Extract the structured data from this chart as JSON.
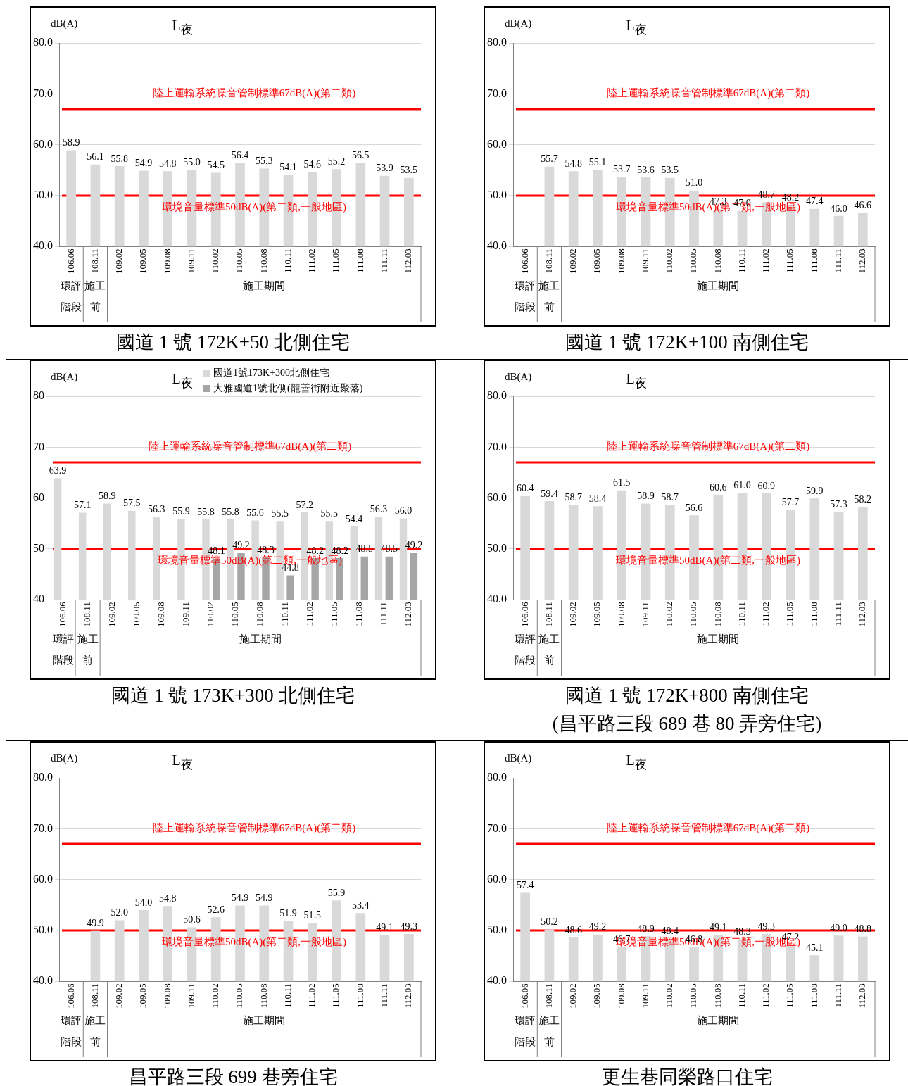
{
  "chart_data": [
    {
      "type": "bar",
      "title": "L$_{夜}$",
      "ylabel": "dB(A)",
      "subtitle": "國道 1 號 172K+50 北側住宅",
      "categories": [
        "106.06",
        "108.11",
        "109.02",
        "109.05",
        "109.08",
        "109.11",
        "110.02",
        "110.05",
        "110.08",
        "110.11",
        "111.02",
        "111.05",
        "111.08",
        "111.11",
        "112.03"
      ],
      "series": [
        {
          "color": "#d9d9d9",
          "values": [
            58.9,
            56.1,
            55.8,
            54.9,
            54.8,
            55.0,
            54.5,
            56.4,
            55.3,
            54.1,
            54.6,
            55.2,
            56.5,
            53.9,
            53.5
          ],
          "value_labels": [
            "58.9",
            "56.1",
            "55.8",
            "54.9",
            "54.8",
            "55.0",
            "54.5",
            "56.4",
            "55.3",
            "54.1",
            "54.6",
            "55.2",
            "56.5",
            "53.9",
            "53.5"
          ]
        }
      ],
      "ylim": [
        40,
        80
      ],
      "yticks": [
        {
          "value": 40,
          "label": "40.0"
        },
        {
          "value": 50,
          "label": "50.0"
        },
        {
          "value": 60,
          "label": "60.0"
        },
        {
          "value": 70,
          "label": "70.0"
        },
        {
          "value": 80,
          "label": "80.0"
        }
      ],
      "grid": "y",
      "ref_lines": [
        {
          "axis": "y",
          "value": 67,
          "label": "陸上運輸系統噪音管制標準67dB(A)(第二類)",
          "color": "#ff0000"
        },
        {
          "axis": "y",
          "value": 50,
          "label": "環境音量標準50dB(A)(第二類,一般地區)",
          "color": "#ff0000"
        }
      ],
      "annotations": [
        "環評階段",
        "施工前",
        "施工期間"
      ]
    },
    {
      "type": "bar",
      "title": "L$_{夜}$",
      "ylabel": "dB(A)",
      "subtitle": "國道 1 號 172K+100 南側住宅",
      "categories": [
        "106.06",
        "108.11",
        "109.02",
        "109.05",
        "109.08",
        "109.11",
        "110.02",
        "110.05",
        "110.08",
        "110.11",
        "111.02",
        "111.05",
        "111.08",
        "111.11",
        "112.03"
      ],
      "series": [
        {
          "color": "#d9d9d9",
          "values": [
            null,
            55.7,
            54.8,
            55.1,
            53.7,
            53.6,
            53.5,
            51.0,
            47.3,
            47.0,
            48.7,
            48.2,
            47.4,
            46.0,
            46.6
          ],
          "value_labels": [
            null,
            "55.7",
            "54.8",
            "55.1",
            "53.7",
            "53.6",
            "53.5",
            "51.0",
            "47.3",
            "47.0",
            "48.7",
            "48.2",
            "47.4",
            "46.0",
            "46.6"
          ]
        }
      ],
      "ylim": [
        40,
        80
      ],
      "yticks": [
        {
          "value": 40,
          "label": "40.0"
        },
        {
          "value": 50,
          "label": "50.0"
        },
        {
          "value": 60,
          "label": "60.0"
        },
        {
          "value": 70,
          "label": "70.0"
        },
        {
          "value": 80,
          "label": "80.0"
        }
      ],
      "grid": "y",
      "ref_lines": [
        {
          "axis": "y",
          "value": 67,
          "label": "陸上運輸系統噪音管制標準67dB(A)(第二類)",
          "color": "#ff0000"
        },
        {
          "axis": "y",
          "value": 50,
          "label": "環境音量標準50dB(A)(第二類,一般地區)",
          "color": "#ff0000"
        }
      ],
      "annotations": [
        "環評階段",
        "施工前",
        "施工期間"
      ]
    },
    {
      "type": "bar",
      "title": "L$_{夜}$",
      "ylabel": "dB(A)",
      "subtitle": "國道 1 號 173K+300 北側住宅",
      "categories": [
        "106.06",
        "108.11",
        "109.02",
        "109.05",
        "109.08",
        "109.11",
        "110.02",
        "110.05",
        "110.08",
        "110.11",
        "111.02",
        "111.05",
        "111.08",
        "111.11",
        "112.03"
      ],
      "series": [
        {
          "name": "國道1號173K+300北側住宅",
          "color": "#d9d9d9",
          "values": [
            63.9,
            57.1,
            58.9,
            57.5,
            56.3,
            55.9,
            55.8,
            55.8,
            55.6,
            55.5,
            57.2,
            55.5,
            54.4,
            56.3,
            56.0
          ],
          "value_labels": [
            "63.9",
            "57.1",
            "58.9",
            "57.5",
            "56.3",
            "55.9",
            "55.8",
            "55.8",
            "55.6",
            "55.5",
            "57.2",
            "55.5",
            "54.4",
            "56.3",
            "56.0"
          ]
        },
        {
          "name": "大雅國道1號北側(龍善街附近聚落)",
          "color": "#a6a6a6",
          "values": [
            null,
            null,
            null,
            null,
            null,
            null,
            48.1,
            49.2,
            48.3,
            44.8,
            48.2,
            48.2,
            48.5,
            48.5,
            49.2
          ],
          "value_labels": [
            null,
            null,
            null,
            null,
            null,
            null,
            "48.1",
            "49.2",
            "48.3",
            "44.8",
            "48.2",
            "48.2",
            "48.5",
            "48.5",
            "49.2"
          ]
        }
      ],
      "ylim": [
        40,
        80
      ],
      "yticks": [
        40,
        50,
        60,
        70,
        80
      ],
      "grid": "y",
      "legend": "top right",
      "ref_lines": [
        {
          "axis": "y",
          "value": 67,
          "label": "陸上運輸系統噪音管制標準67dB(A)(第二類)",
          "color": "#ff0000"
        },
        {
          "axis": "y",
          "value": 50,
          "label": "環境音量標準50dB(A)(第二類,一般地區)",
          "color": "#ff0000"
        }
      ],
      "annotations": [
        "環評階段",
        "施工前",
        "施工期間"
      ]
    },
    {
      "type": "bar",
      "title": "L$_{夜}$",
      "ylabel": "dB(A)",
      "subtitle": "國道 1 號 172K+800 南側住宅\n(昌平路三段 689 巷 80 弄旁住宅)",
      "categories": [
        "106.06",
        "108.11",
        "109.02",
        "109.05",
        "109.08",
        "109.11",
        "110.02",
        "110.05",
        "110.08",
        "110.11",
        "111.02",
        "111.05",
        "111.08",
        "111.11",
        "112.03"
      ],
      "series": [
        {
          "color": "#d9d9d9",
          "values": [
            60.4,
            59.4,
            58.7,
            58.4,
            61.5,
            58.9,
            58.7,
            56.6,
            60.6,
            61.0,
            60.9,
            57.7,
            59.9,
            57.3,
            58.2
          ],
          "value_labels": [
            "60.4",
            "59.4",
            "58.7",
            "58.4",
            "61.5",
            "58.9",
            "58.7",
            "56.6",
            "60.6",
            "61.0",
            "60.9",
            "57.7",
            "59.9",
            "57.3",
            "58.2"
          ]
        }
      ],
      "ylim": [
        40,
        80
      ],
      "yticks": [
        {
          "value": 40,
          "label": "40.0"
        },
        {
          "value": 50,
          "label": "50.0"
        },
        {
          "value": 60,
          "label": "60.0"
        },
        {
          "value": 70,
          "label": "70.0"
        },
        {
          "value": 80,
          "label": "80.0"
        }
      ],
      "grid": "y",
      "ref_lines": [
        {
          "axis": "y",
          "value": 67,
          "label": "陸上運輸系統噪音管制標準67dB(A)(第二類)",
          "color": "#ff0000"
        },
        {
          "axis": "y",
          "value": 50,
          "label": "環境音量標準50dB(A)(第二類,一般地區)",
          "color": "#ff0000"
        }
      ],
      "annotations": [
        "環評階段",
        "施工前",
        "施工期間"
      ]
    },
    {
      "type": "bar",
      "title": "L$_{夜}$",
      "ylabel": "dB(A)",
      "subtitle": "昌平路三段 699 巷旁住宅",
      "categories": [
        "106.06",
        "108.11",
        "109.02",
        "109.05",
        "109.08",
        "109.11",
        "110.02",
        "110.05",
        "110.08",
        "110.11",
        "111.02",
        "111.05",
        "111.08",
        "111.11",
        "112.03"
      ],
      "series": [
        {
          "color": "#d9d9d9",
          "values": [
            null,
            49.9,
            52.0,
            54.0,
            54.8,
            50.6,
            52.6,
            54.9,
            54.9,
            51.9,
            51.5,
            55.9,
            53.4,
            49.1,
            49.3
          ],
          "value_labels": [
            null,
            "49.9",
            "52.0",
            "54.0",
            "54.8",
            "50.6",
            "52.6",
            "54.9",
            "54.9",
            "51.9",
            "51.5",
            "55.9",
            "53.4",
            "49.1",
            "49.3"
          ]
        }
      ],
      "ylim": [
        40,
        80
      ],
      "yticks": [
        {
          "value": 40,
          "label": "40.0"
        },
        {
          "value": 50,
          "label": "50.0"
        },
        {
          "value": 60,
          "label": "60.0"
        },
        {
          "value": 70,
          "label": "70.0"
        },
        {
          "value": 80,
          "label": "80.0"
        }
      ],
      "grid": "y",
      "ref_lines": [
        {
          "axis": "y",
          "value": 67,
          "label": "陸上運輸系統噪音管制標準67dB(A)(第二類)",
          "color": "#ff0000"
        },
        {
          "axis": "y",
          "value": 50,
          "label": "環境音量標準50dB(A)(第二類,一般地區)",
          "color": "#ff0000"
        }
      ],
      "annotations": [
        "環評階段",
        "施工前",
        "施工期間"
      ]
    },
    {
      "type": "bar",
      "title": "L$_{夜}$",
      "ylabel": "dB(A)",
      "subtitle": "更生巷同榮路口住宅",
      "categories": [
        "106.06",
        "108.11",
        "109.02",
        "109.05",
        "109.08",
        "109.11",
        "110.02",
        "110.05",
        "110.08",
        "110.11",
        "111.02",
        "111.05",
        "111.08",
        "111.11",
        "112.03"
      ],
      "series": [
        {
          "color": "#d9d9d9",
          "values": [
            57.4,
            50.2,
            48.6,
            49.2,
            46.7,
            48.9,
            48.4,
            46.8,
            49.1,
            48.3,
            49.3,
            47.2,
            45.1,
            49.0,
            48.8
          ],
          "value_labels": [
            "57.4",
            "50.2",
            "48.6",
            "49.2",
            "46.7",
            "48.9",
            "48.4",
            "46.8",
            "49.1",
            "48.3",
            "49.3",
            "47.2",
            "45.1",
            "49.0",
            "48.8"
          ]
        }
      ],
      "ylim": [
        40,
        80
      ],
      "yticks": [
        {
          "value": 40,
          "label": "40.0"
        },
        {
          "value": 50,
          "label": "50.0"
        },
        {
          "value": 60,
          "label": "60.0"
        },
        {
          "value": 70,
          "label": "70.0"
        },
        {
          "value": 80,
          "label": "80.0"
        }
      ],
      "grid": "y",
      "ref_lines": [
        {
          "axis": "y",
          "value": 67,
          "label": "陸上運輸系統噪音管制標準67dB(A)(第二類)",
          "color": "#ff0000"
        },
        {
          "axis": "y",
          "value": 50,
          "label": "環境音量標準50dB(A)(第二類,一般地區)",
          "color": "#ff0000"
        }
      ],
      "annotations": [
        "環評階段",
        "施工前",
        "施工期間"
      ]
    }
  ]
}
